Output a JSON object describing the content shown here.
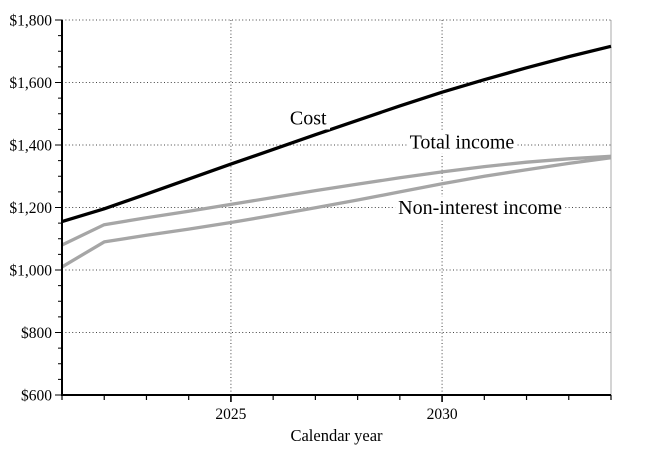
{
  "chart_data": {
    "type": "line",
    "title": "",
    "xlabel": "Calendar year",
    "ylabel": "",
    "x_years": [
      2021,
      2022,
      2023,
      2024,
      2025,
      2026,
      2027,
      2028,
      2029,
      2030,
      2031,
      2032,
      2033,
      2034
    ],
    "series": [
      {
        "name": "Cost",
        "color": "#000000",
        "values": [
          1155,
          1196,
          1243,
          1291,
          1339,
          1386,
          1433,
          1479,
          1525,
          1569,
          1609,
          1647,
          1683,
          1716
        ]
      },
      {
        "name": "Total income",
        "color": "#a6a6a6",
        "values": [
          1080,
          1145,
          1167,
          1188,
          1210,
          1232,
          1254,
          1275,
          1295,
          1314,
          1331,
          1345,
          1356,
          1364
        ]
      },
      {
        "name": "Non-interest income",
        "color": "#a6a6a6",
        "values": [
          1010,
          1090,
          1111,
          1131,
          1152,
          1175,
          1199,
          1224,
          1250,
          1276,
          1300,
          1321,
          1341,
          1359
        ]
      }
    ],
    "xlim": [
      2021,
      2034
    ],
    "ylim": [
      600,
      1800
    ],
    "y_tick_minor_step": 50,
    "x_tick_minor_step": 1,
    "y_tick_labels": [
      {
        "y": 600,
        "label": "$600"
      },
      {
        "y": 800,
        "label": "$800"
      },
      {
        "y": 1000,
        "label": "$1,000"
      },
      {
        "y": 1200,
        "label": "$1,200"
      },
      {
        "y": 1400,
        "label": "$1,400"
      },
      {
        "y": 1600,
        "label": "$1,600"
      },
      {
        "y": 1800,
        "label": "$1,800"
      }
    ],
    "x_tick_labels": [
      {
        "x": 2025,
        "label": "2025"
      },
      {
        "x": 2030,
        "label": "2030"
      }
    ],
    "grid": {
      "style": "dotted",
      "color": "#444444",
      "h_lines": [
        800,
        1000,
        1200,
        1400,
        1600,
        1800
      ],
      "v_lines": [
        2025,
        2030
      ]
    },
    "right_border_color": "#aaaaaa",
    "axis_color": "#000000",
    "legend_position": "none",
    "annotations": [
      {
        "text": "Cost",
        "x": 2026.83,
        "y": 1488
      },
      {
        "text": "Total income",
        "x": 2030.47,
        "y": 1411
      },
      {
        "text": "Non-interest income",
        "x": 2030.9,
        "y": 1202
      }
    ]
  }
}
